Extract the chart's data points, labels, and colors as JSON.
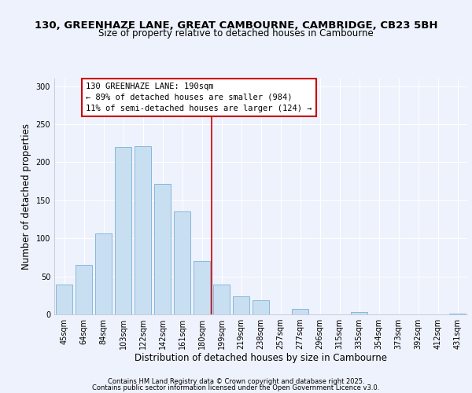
{
  "title1": "130, GREENHAZE LANE, GREAT CAMBOURNE, CAMBRIDGE, CB23 5BH",
  "title2": "Size of property relative to detached houses in Cambourne",
  "xlabel": "Distribution of detached houses by size in Cambourne",
  "ylabel": "Number of detached properties",
  "categories": [
    "45sqm",
    "64sqm",
    "84sqm",
    "103sqm",
    "122sqm",
    "142sqm",
    "161sqm",
    "180sqm",
    "199sqm",
    "219sqm",
    "238sqm",
    "257sqm",
    "277sqm",
    "296sqm",
    "315sqm",
    "335sqm",
    "354sqm",
    "373sqm",
    "392sqm",
    "412sqm",
    "431sqm"
  ],
  "values": [
    39,
    65,
    106,
    220,
    221,
    172,
    135,
    70,
    39,
    24,
    19,
    0,
    7,
    0,
    0,
    3,
    0,
    0,
    0,
    0,
    1
  ],
  "bar_color": "#c8dff2",
  "bar_edge_color": "#7aafd4",
  "reference_line_x": 8.0,
  "reference_line_color": "#cc0000",
  "annotation_title": "130 GREENHAZE LANE: 190sqm",
  "annotation_line1": "← 89% of detached houses are smaller (984)",
  "annotation_line2": "11% of semi-detached houses are larger (124) →",
  "annotation_box_color": "#ffffff",
  "annotation_box_edge": "#cc0000",
  "ylim": [
    0,
    310
  ],
  "yticks": [
    0,
    50,
    100,
    150,
    200,
    250,
    300
  ],
  "background_color": "#eef2fc",
  "grid_color": "#ffffff",
  "footer1": "Contains HM Land Registry data © Crown copyright and database right 2025.",
  "footer2": "Contains public sector information licensed under the Open Government Licence v3.0.",
  "title1_fontsize": 9.5,
  "title2_fontsize": 8.5,
  "xlabel_fontsize": 8.5,
  "ylabel_fontsize": 8.5,
  "tick_fontsize": 7,
  "annotation_fontsize": 7.5,
  "footer_fontsize": 6.0
}
